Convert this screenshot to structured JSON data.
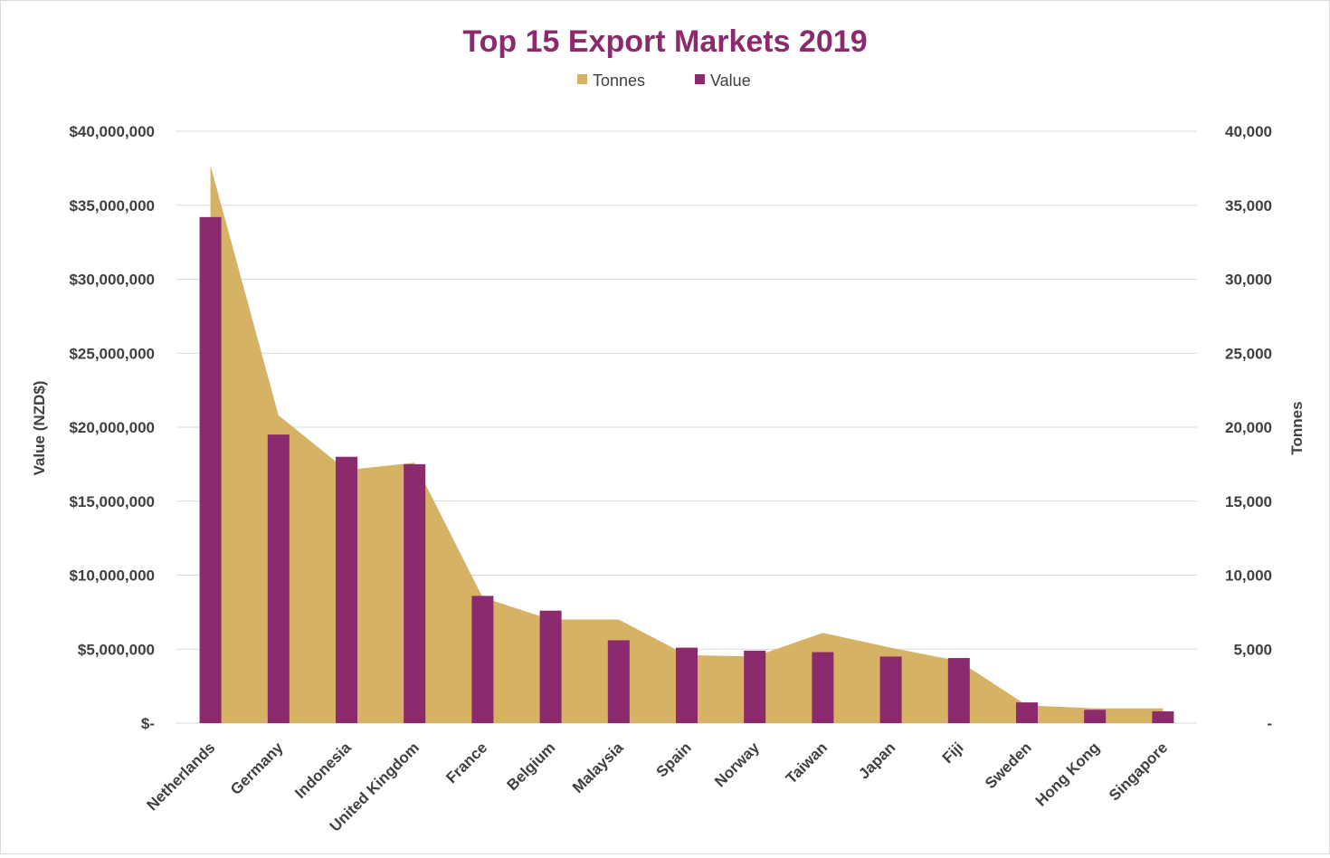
{
  "chart_data": {
    "type": "bar",
    "title": "Top 15 Export Markets 2019",
    "categories": [
      "Netherlands",
      "Germany",
      "Indonesia",
      "United Kingdom",
      "France",
      "Belgium",
      "Malaysia",
      "Spain",
      "Norway",
      "Taiwan",
      "Japan",
      "Fiji",
      "Sweden",
      "Hong Kong",
      "Singapore"
    ],
    "series": [
      {
        "name": "Tonnes",
        "type": "area",
        "axis": "right",
        "color": "#d6b264",
        "values": [
          37700,
          20800,
          17100,
          17600,
          8500,
          7000,
          7000,
          4600,
          4500,
          6100,
          5100,
          4200,
          1200,
          1000,
          1000
        ]
      },
      {
        "name": "Value",
        "type": "bar",
        "axis": "left",
        "color": "#8b2a6c",
        "values": [
          34200000,
          19500000,
          18000000,
          17500000,
          8600000,
          7600000,
          5600000,
          5100000,
          4900000,
          4800000,
          4500000,
          4400000,
          1400000,
          900000,
          800000
        ]
      }
    ],
    "ylabel": "Value (NZD$)",
    "y2label": "Tonnes",
    "ylim": [
      0,
      40000000
    ],
    "y2lim": [
      0,
      40000
    ],
    "yticks": [
      "$-",
      "$5,000,000",
      "$10,000,000",
      "$15,000,000",
      "$20,000,000",
      "$25,000,000",
      "$30,000,000",
      "$35,000,000",
      "$40,000,000"
    ],
    "y2ticks": [
      "-",
      "5,000",
      "10,000",
      "15,000",
      "20,000",
      "25,000",
      "30,000",
      "35,000",
      "40,000"
    ],
    "grid": true,
    "legend": "top-center"
  }
}
